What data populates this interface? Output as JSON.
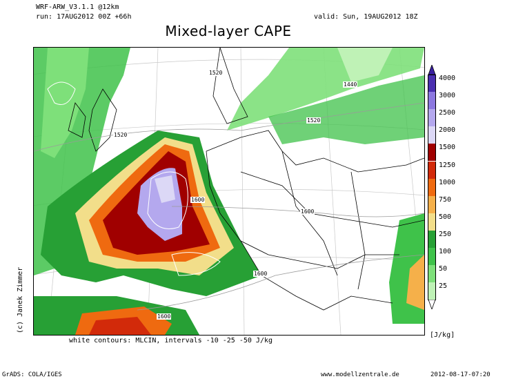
{
  "header": {
    "model": "WRF-ARW_V3.1.1 @12km",
    "run": "run: 17AUG2012 00Z +66h",
    "valid": "valid: Sun, 19AUG2012 18Z",
    "title": "Mixed-layer CAPE"
  },
  "map": {
    "contour_labels": [
      "1520",
      "1440",
      "1520",
      "1520",
      "1600",
      "1600",
      "1600",
      "1600"
    ]
  },
  "footer": {
    "note": "white contours: MLCIN, intervals -10 -25 -50 J/kg",
    "credit": "(c) Janek Zimmer",
    "grads": "GrADS: COLA/IGES",
    "website": "www.modellzentrale.de",
    "timestamp": "2012-08-17-07:20"
  },
  "legend": {
    "unit": "[J/kg]",
    "levels": [
      "4000",
      "3000",
      "2500",
      "2000",
      "1500",
      "1250",
      "1000",
      "750",
      "500",
      "250",
      "100",
      "50",
      "25"
    ],
    "colors": [
      "#4a2fb0",
      "#8c78e0",
      "#b4a8ee",
      "#dcd8f6",
      "#a00000",
      "#d22a0a",
      "#ef6a10",
      "#f5b04a",
      "#f2de8a",
      "#27a035",
      "#3fc24a",
      "#7ee07a",
      "#bff2b6"
    ],
    "top_color": "#3a20a0",
    "bottom_color": "#ffffff"
  }
}
